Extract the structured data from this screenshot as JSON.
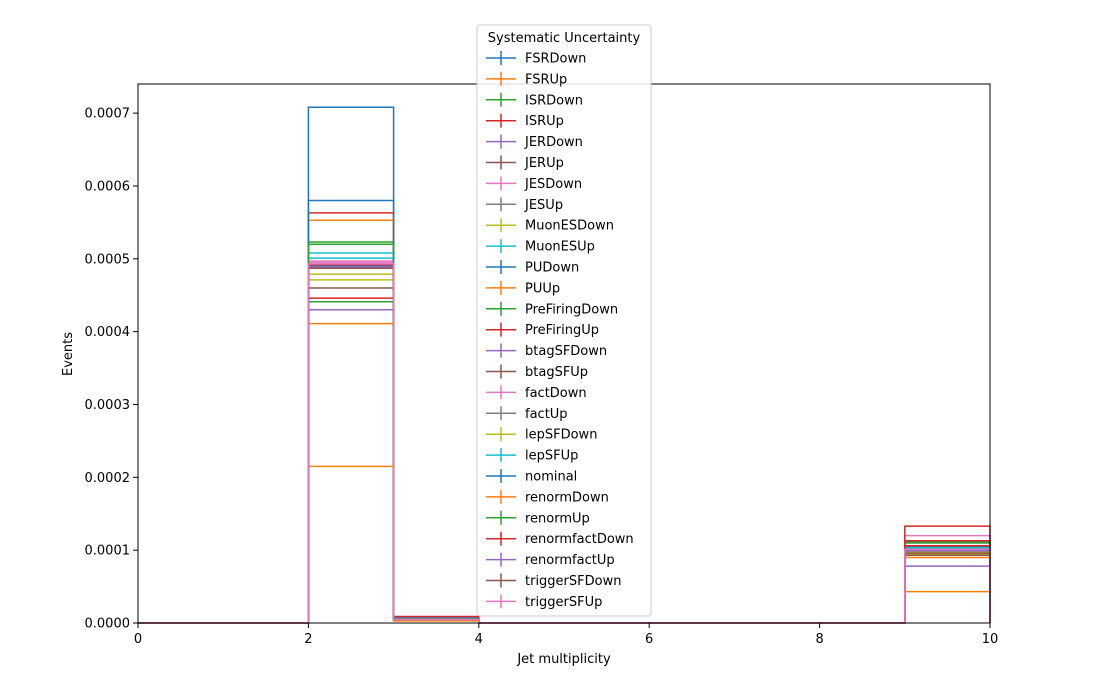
{
  "chart_data": {
    "type": "step-histogram",
    "title": "",
    "xlabel": "Jet multiplicity",
    "ylabel": "Events",
    "xlim": [
      0,
      10
    ],
    "ylim": [
      0,
      0.00074
    ],
    "x_ticks": [
      "0",
      "2",
      "4",
      "6",
      "8",
      "10"
    ],
    "y_ticks": [
      "0.0000",
      "0.0001",
      "0.0002",
      "0.0003",
      "0.0004",
      "0.0005",
      "0.0006",
      "0.0007"
    ],
    "bin_edges": [
      0,
      1,
      2,
      3,
      4,
      5,
      6,
      7,
      8,
      9,
      10
    ],
    "grid": false,
    "legend": {
      "title": "Systematic Uncertainty",
      "placement": "top-center"
    },
    "series": [
      {
        "name": "FSRDown",
        "color": "#1f77b4",
        "values": [
          0,
          0,
          0.00058,
          6e-06,
          0,
          0,
          0,
          0,
          0,
          0.000105
        ]
      },
      {
        "name": "FSRUp",
        "color": "#ff7f0e",
        "values": [
          0,
          0,
          0.000553,
          5e-06,
          0,
          0,
          0,
          0,
          0,
          9.8e-05
        ]
      },
      {
        "name": "ISRDown",
        "color": "#2ca02c",
        "values": [
          0,
          0,
          0.000523,
          5.5e-06,
          0,
          0,
          0,
          0,
          0,
          0.000103
        ]
      },
      {
        "name": "ISRUp",
        "color": "#d62728",
        "values": [
          0,
          0,
          0.000563,
          6e-06,
          0,
          0,
          0,
          0,
          0,
          0.000106
        ]
      },
      {
        "name": "JERDown",
        "color": "#9467bd",
        "values": [
          0,
          0,
          0.00049,
          5e-06,
          0,
          0,
          0,
          0,
          0,
          9.8e-05
        ]
      },
      {
        "name": "JERUp",
        "color": "#8c564b",
        "values": [
          0,
          0,
          0.000488,
          5e-06,
          0,
          0,
          0,
          0,
          0,
          9.7e-05
        ]
      },
      {
        "name": "JESDown",
        "color": "#e377c2",
        "values": [
          0,
          0,
          0.000497,
          5e-06,
          0,
          0,
          0,
          0,
          0,
          0.0001
        ]
      },
      {
        "name": "JESUp",
        "color": "#7f7f7f",
        "values": [
          0,
          0,
          0.00052,
          5.5e-06,
          0,
          0,
          0,
          0,
          0,
          0.000102
        ]
      },
      {
        "name": "MuonESDown",
        "color": "#bcbd22",
        "values": [
          0,
          0,
          0.000479,
          5e-06,
          0,
          0,
          0,
          0,
          0,
          9.7e-05
        ]
      },
      {
        "name": "MuonESUp",
        "color": "#17becf",
        "values": [
          0,
          0,
          0.000501,
          5e-06,
          0,
          0,
          0,
          0,
          0,
          0.0001
        ]
      },
      {
        "name": "PUDown",
        "color": "#1f77b4",
        "values": [
          0,
          0,
          0.000708,
          7e-06,
          0,
          0,
          0,
          0,
          0,
          0.00011
        ]
      },
      {
        "name": "PUUp",
        "color": "#ff7f0e",
        "values": [
          0,
          0,
          0.000411,
          4.5e-06,
          0,
          0,
          0,
          0,
          0,
          9e-05
        ]
      },
      {
        "name": "PreFiringDown",
        "color": "#2ca02c",
        "values": [
          0,
          0,
          0.000441,
          5e-06,
          0,
          0,
          0,
          0,
          0,
          0.000112
        ]
      },
      {
        "name": "PreFiringUp",
        "color": "#d62728",
        "values": [
          0,
          0,
          0.000446,
          5e-06,
          0,
          0,
          0,
          0,
          0,
          0.000113
        ]
      },
      {
        "name": "btagSFDown",
        "color": "#9467bd",
        "values": [
          0,
          0,
          0.00043,
          4.5e-06,
          0,
          0,
          0,
          0,
          0,
          7.8e-05
        ]
      },
      {
        "name": "btagSFUp",
        "color": "#8c564b",
        "values": [
          0,
          0,
          0.00046,
          5e-06,
          0,
          0,
          0,
          0,
          0,
          9.3e-05
        ]
      },
      {
        "name": "factDown",
        "color": "#e377c2",
        "values": [
          0,
          0,
          0.000495,
          5e-06,
          0,
          0,
          0,
          0,
          0,
          0.00012
        ]
      },
      {
        "name": "factUp",
        "color": "#7f7f7f",
        "values": [
          0,
          0,
          0.000492,
          5e-06,
          0,
          0,
          0,
          0,
          0,
          9.5e-05
        ]
      },
      {
        "name": "lepSFDown",
        "color": "#bcbd22",
        "values": [
          0,
          0,
          0.000471,
          5e-06,
          0,
          0,
          0,
          0,
          0,
          9.5e-05
        ]
      },
      {
        "name": "lepSFUp",
        "color": "#17becf",
        "values": [
          0,
          0,
          0.000508,
          5.5e-06,
          0,
          0,
          0,
          0,
          0,
          0.000103
        ]
      },
      {
        "name": "nominal",
        "color": "#1f77b4",
        "values": [
          0,
          0,
          0.00049,
          5e-06,
          0,
          0,
          0,
          0,
          0,
          0.0001
        ]
      },
      {
        "name": "renormDown",
        "color": "#ff7f0e",
        "values": [
          0,
          0,
          0.000215,
          3e-06,
          0,
          0,
          0,
          0,
          0,
          4.3e-05
        ]
      },
      {
        "name": "renormUp",
        "color": "#2ca02c",
        "values": [
          0,
          0,
          0.00052,
          5.5e-06,
          0,
          0,
          0,
          0,
          0,
          0.00011
        ]
      },
      {
        "name": "renormfactDown",
        "color": "#d62728",
        "values": [
          0,
          0,
          0.000492,
          9e-06,
          0,
          0,
          0,
          0,
          0,
          0.000133
        ]
      },
      {
        "name": "renormfactUp",
        "color": "#9467bd",
        "values": [
          0,
          0,
          0.000489,
          5e-06,
          0,
          0,
          0,
          0,
          0,
          9.9e-05
        ]
      },
      {
        "name": "triggerSFDown",
        "color": "#8c564b",
        "values": [
          0,
          0,
          0.000487,
          5e-06,
          0,
          0,
          0,
          0,
          0,
          9.6e-05
        ]
      },
      {
        "name": "triggerSFUp",
        "color": "#e377c2",
        "values": [
          0,
          0,
          0.000493,
          5e-06,
          0,
          0,
          0,
          0,
          0,
          0.000101
        ]
      }
    ]
  }
}
